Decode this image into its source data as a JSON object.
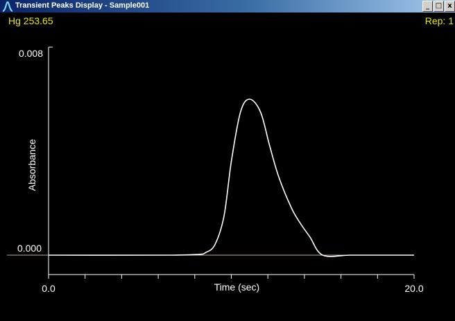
{
  "window": {
    "title": "Transient Peaks Display - Sample001",
    "controls": {
      "minimize": "_",
      "maximize": "□",
      "close": "x"
    }
  },
  "header": {
    "element_label": "Hg 253.65",
    "rep_label": "Rep: 1"
  },
  "colors": {
    "background": "#000000",
    "curve": "#ffffff",
    "baseline": "#c8a890",
    "header_text": "#e8e800"
  },
  "icons": [
    "peak-icon",
    "minimize-icon",
    "maximize-icon",
    "close-icon"
  ],
  "chart_data": {
    "type": "line",
    "title": "",
    "xlabel": "Time (sec)",
    "ylabel": "Absorbance",
    "xlim": [
      0,
      20
    ],
    "ylim": [
      0,
      0.008
    ],
    "x_tick_labels": [
      "0.0",
      "20.0"
    ],
    "y_tick_labels": [
      "0.000",
      "0.008"
    ],
    "grid": false,
    "series": [
      {
        "x": [
          0,
          6.5,
          8.2,
          8.6,
          9.1,
          9.6,
          10.0,
          10.5,
          11.0,
          11.6,
          12.1,
          12.6,
          13.3,
          13.8,
          14.3,
          15.0,
          16.5,
          18.0,
          20.0
        ],
        "y": [
          0,
          0,
          3e-05,
          0.0001,
          0.0004,
          0.0015,
          0.0036,
          0.0055,
          0.006,
          0.0055,
          0.0042,
          0.003,
          0.0018,
          0.0012,
          0.0007,
          0,
          0,
          0,
          0
        ]
      }
    ]
  }
}
